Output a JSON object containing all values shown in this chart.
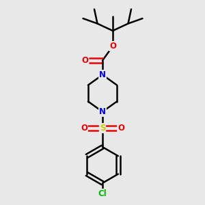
{
  "background_color": "#e8e8e8",
  "bond_color": "#000000",
  "bond_width": 1.8,
  "atom_colors": {
    "C": "#000000",
    "N": "#0000ee",
    "O": "#ee0000",
    "S": "#cccc00",
    "Cl": "#00bb00"
  },
  "figsize": [
    3.0,
    3.0
  ],
  "dpi": 100,
  "xlim": [
    0,
    10
  ],
  "ylim": [
    0,
    10
  ]
}
